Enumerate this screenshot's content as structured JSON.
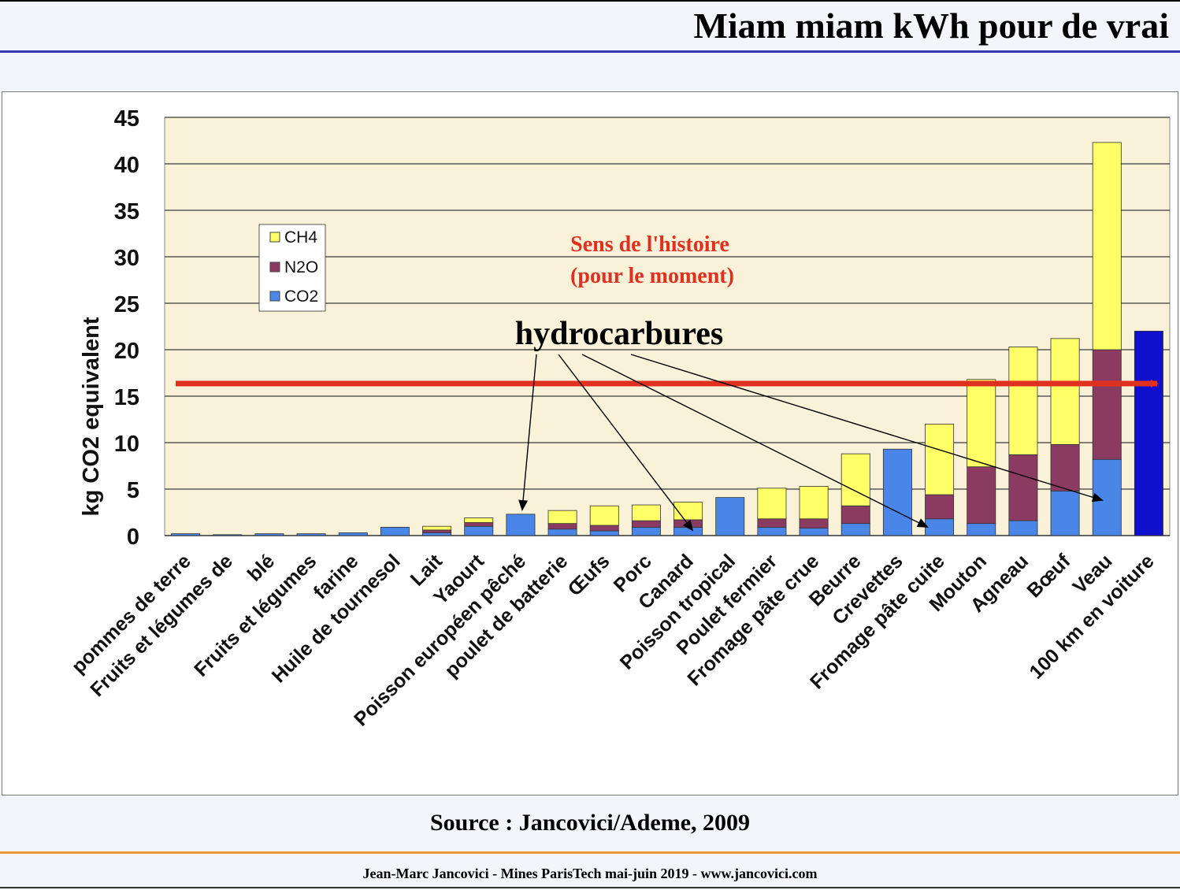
{
  "slide": {
    "title": "Miam miam kWh pour de vrai",
    "source": "Source : Jancovici/Ademe, 2009",
    "footer": "Jean-Marc Jancovici - Mines ParisTech mai-juin 2019 - www.jancovici.com"
  },
  "colors": {
    "CH4": "#ffff66",
    "N2O": "#8b3a62",
    "CO2": "#4a86e8",
    "car": "#1010cc",
    "arrow": "#e03020",
    "plot_background": "#f9f1d8",
    "annotation_red": "#e03020"
  },
  "chart_data": {
    "type": "bar",
    "stacked": true,
    "ylabel": "kg CO2 equivalent",
    "ylim": [
      0,
      45
    ],
    "yticks": [
      0,
      5,
      10,
      15,
      20,
      25,
      30,
      35,
      40,
      45
    ],
    "grid": true,
    "legend_position": "top-left",
    "categories": [
      "pommes de terre",
      "Fruits et légumes de",
      "blé",
      "Fruits et légumes",
      "farine",
      "Huile de tournesol",
      "Lait",
      "Yaourt",
      "Poisson européen pêché",
      "poulet de batterie",
      "Œufs",
      "Porc",
      "Canard",
      "Poisson tropical",
      "Poulet fermier",
      "Fromage pâte crue",
      "Beurre",
      "Crevettes",
      "Fromage pâte cuite",
      "Mouton",
      "Agneau",
      "Bœuf",
      "Veau",
      "100 km en voiture"
    ],
    "series": [
      {
        "name": "CO2",
        "values": [
          0.2,
          0.1,
          0.2,
          0.2,
          0.3,
          0.9,
          0.3,
          1.0,
          2.3,
          0.7,
          0.5,
          0.9,
          0.9,
          4.1,
          0.9,
          0.8,
          1.3,
          9.3,
          1.8,
          1.3,
          1.6,
          4.8,
          8.2,
          22.0
        ]
      },
      {
        "name": "N2O",
        "values": [
          0,
          0,
          0,
          0,
          0,
          0,
          0.3,
          0.4,
          0,
          0.6,
          0.6,
          0.7,
          0.8,
          0,
          0.9,
          1.0,
          1.9,
          0,
          2.6,
          6.1,
          7.1,
          5.0,
          11.8,
          0
        ]
      },
      {
        "name": "CH4",
        "values": [
          0,
          0,
          0,
          0,
          0,
          0,
          0.4,
          0.5,
          0,
          1.4,
          2.1,
          1.7,
          1.9,
          0,
          3.3,
          3.5,
          5.6,
          0,
          7.6,
          9.4,
          11.6,
          11.4,
          22.3,
          0
        ]
      }
    ],
    "legend": [
      "CH4",
      "N2O",
      "CO2"
    ],
    "annotations": {
      "trend_label_line1": "Sens de l'histoire",
      "trend_label_line2": "(pour le moment)",
      "hydrocarbon_label": "hydrocarbures"
    }
  }
}
